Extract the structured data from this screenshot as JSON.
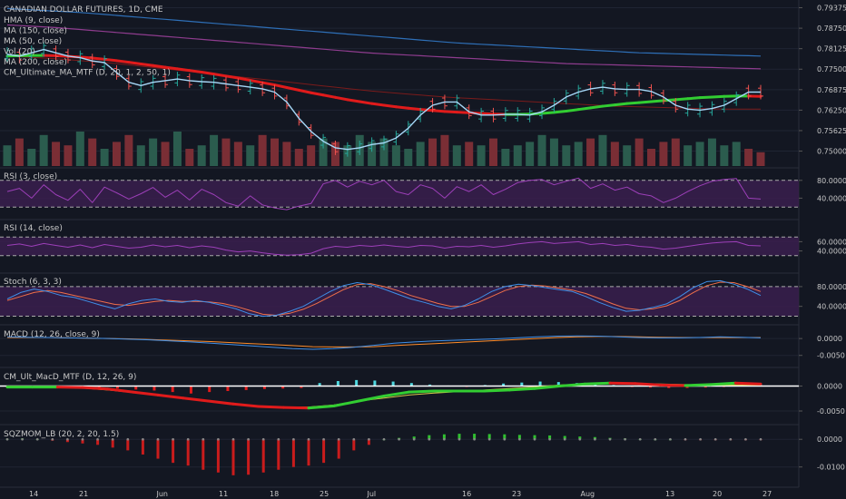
{
  "chart_data": [
    {
      "id": "main",
      "type": "candlestick",
      "title": "CANADIAN DOLLAR FUTURES, 1D, CME",
      "legend": [
        "HMA (9, close)",
        "MA (150, close)",
        "MA (50, close)",
        "Vol (20)",
        "MA (200, close)",
        "CM_Ultimate_MA_MTF (D, 20, 1, 2, 50, 1)"
      ],
      "ylim": [
        0.746,
        0.795
      ],
      "yticks": [
        "0.79375",
        "0.78750",
        "0.78125",
        "0.77500",
        "0.76875",
        "0.76250",
        "0.75625",
        "0.75000"
      ],
      "ytick_values": [
        0.79375,
        0.7875,
        0.78125,
        0.775,
        0.76875,
        0.7625,
        0.75625,
        0.75
      ],
      "xticks": [
        "14",
        "21",
        "Jun",
        "11",
        "18",
        "25",
        "Jul",
        "16",
        "23",
        "Aug",
        "13",
        "20",
        "27"
      ],
      "hma": [
        0.7795,
        0.779,
        0.78,
        0.781,
        0.78,
        0.779,
        0.7785,
        0.7775,
        0.777,
        0.774,
        0.771,
        0.77,
        0.771,
        0.7715,
        0.772,
        0.7715,
        0.7712,
        0.771,
        0.7705,
        0.77,
        0.7695,
        0.769,
        0.768,
        0.765,
        0.76,
        0.756,
        0.753,
        0.751,
        0.7505,
        0.751,
        0.752,
        0.7525,
        0.754,
        0.757,
        0.761,
        0.764,
        0.765,
        0.765,
        0.762,
        0.761,
        0.761,
        0.7612,
        0.7612,
        0.761,
        0.762,
        0.764,
        0.7665,
        0.768,
        0.769,
        0.7695,
        0.769,
        0.7688,
        0.7688,
        0.7682,
        0.7665,
        0.764,
        0.7628,
        0.7625,
        0.763,
        0.764,
        0.766,
        0.768,
        0.768
      ],
      "ma50": [
        0.779,
        0.7791,
        0.7792,
        0.7792,
        0.7791,
        0.7789,
        0.7787,
        0.7784,
        0.778,
        0.7776,
        0.7771,
        0.7766,
        0.7761,
        0.7756,
        0.7751,
        0.7746,
        0.7741,
        0.7735,
        0.7729,
        0.7723,
        0.7716,
        0.7709,
        0.7702,
        0.7694,
        0.7686,
        0.7678,
        0.7671,
        0.7664,
        0.7657,
        0.7651,
        0.7645,
        0.764,
        0.7635,
        0.7631,
        0.7627,
        0.7624,
        0.7621,
        0.7619,
        0.7617,
        0.7615,
        0.7613,
        0.7612,
        0.7612,
        0.7613,
        0.7615,
        0.7618,
        0.7622,
        0.7627,
        0.7632,
        0.7637,
        0.7641,
        0.7645,
        0.7648,
        0.7651,
        0.7654,
        0.7657,
        0.766,
        0.7663,
        0.7665,
        0.7667,
        0.7668,
        0.7668,
        0.7667
      ],
      "ma150": [
        0.7935,
        0.7933,
        0.7931,
        0.7929,
        0.7927,
        0.7925,
        0.7923,
        0.792,
        0.7917,
        0.7914,
        0.7911,
        0.7908,
        0.7905,
        0.7902,
        0.7899,
        0.7896,
        0.7893,
        0.789,
        0.7887,
        0.7884,
        0.7881,
        0.7878,
        0.7875,
        0.7872,
        0.7869,
        0.7866,
        0.7863,
        0.786,
        0.7857,
        0.7854,
        0.7851,
        0.7848,
        0.7845,
        0.7842,
        0.7839,
        0.7836,
        0.7833,
        0.783,
        0.7828,
        0.7826,
        0.7824,
        0.7822,
        0.782,
        0.7818,
        0.7816,
        0.7814,
        0.7812,
        0.781,
        0.7808,
        0.7806,
        0.7804,
        0.7802,
        0.78,
        0.7799,
        0.7798,
        0.7797,
        0.7796,
        0.7795,
        0.7794,
        0.7793,
        0.7792,
        0.7791,
        0.779
      ],
      "ma200": [
        0.7885,
        0.7883,
        0.7881,
        0.7879,
        0.7877,
        0.7874,
        0.7871,
        0.7868,
        0.7865,
        0.7862,
        0.7859,
        0.7856,
        0.7853,
        0.785,
        0.7847,
        0.7844,
        0.7841,
        0.7838,
        0.7835,
        0.7832,
        0.7829,
        0.7826,
        0.7823,
        0.782,
        0.7817,
        0.7814,
        0.7811,
        0.7808,
        0.7805,
        0.7802,
        0.7799,
        0.7797,
        0.7795,
        0.7793,
        0.7791,
        0.7789,
        0.7787,
        0.7785,
        0.7783,
        0.7781,
        0.7779,
        0.7777,
        0.7775,
        0.7773,
        0.7771,
        0.7769,
        0.7767,
        0.7766,
        0.7765,
        0.7764,
        0.7763,
        0.7762,
        0.7761,
        0.776,
        0.7759,
        0.7758,
        0.7757,
        0.7756,
        0.7755,
        0.7754,
        0.7753,
        0.7752,
        0.7751
      ],
      "ma200b": [
        0.779,
        0.7788,
        0.7786,
        0.7784,
        0.7782,
        0.7779,
        0.7776,
        0.7773,
        0.777,
        0.7767,
        0.7763,
        0.7759,
        0.7755,
        0.7751,
        0.7747,
        0.7743,
        0.7739,
        0.7735,
        0.7731,
        0.7727,
        0.7723,
        0.7719,
        0.7715,
        0.7711,
        0.7707,
        0.7703,
        0.7699,
        0.7695,
        0.7691,
        0.7687,
        0.7683,
        0.768,
        0.7677,
        0.7674,
        0.7671,
        0.7668,
        0.7665,
        0.7663,
        0.7661,
        0.7659,
        0.7657,
        0.7655,
        0.7653,
        0.7651,
        0.7649,
        0.7647,
        0.7645,
        0.7643,
        0.7641,
        0.7639,
        0.7637,
        0.7636,
        0.7635,
        0.7634,
        0.7633,
        0.7632,
        0.7631,
        0.763,
        0.7629,
        0.7628,
        0.7628,
        0.7628,
        0.7628
      ],
      "candle_dir": [
        1,
        0,
        1,
        1,
        0,
        0,
        1,
        0,
        1,
        0,
        0,
        1,
        1,
        0,
        1,
        0,
        1,
        1,
        0,
        0,
        1,
        0,
        0,
        0,
        0,
        0,
        1,
        0,
        1,
        1,
        1,
        1,
        1,
        1,
        1,
        0,
        0,
        1,
        0,
        1,
        0,
        1,
        1,
        1,
        1,
        1,
        1,
        1,
        0,
        1,
        0,
        1,
        0,
        0,
        0,
        0,
        1,
        1,
        1,
        1,
        1,
        0,
        0
      ],
      "volume": [
        0.6,
        0.8,
        0.5,
        0.9,
        0.7,
        0.6,
        1.0,
        0.8,
        0.5,
        0.7,
        0.9,
        0.6,
        0.8,
        0.7,
        1.0,
        0.5,
        0.6,
        0.9,
        0.8,
        0.7,
        0.6,
        0.9,
        0.8,
        0.7,
        0.5,
        0.6,
        0.8,
        0.7,
        0.6,
        0.9,
        0.7,
        0.8,
        0.6,
        0.5,
        0.7,
        0.8,
        0.9,
        0.6,
        0.7,
        0.6,
        0.8,
        0.5,
        0.6,
        0.7,
        0.9,
        0.8,
        0.6,
        0.7,
        0.8,
        0.9,
        0.7,
        0.6,
        0.8,
        0.5,
        0.7,
        0.8,
        0.6,
        0.7,
        0.8,
        0.6,
        0.7,
        0.5,
        0.4
      ]
    },
    {
      "id": "rsi3",
      "type": "line",
      "label": "RSI (3, close)",
      "ylim": [
        0,
        100
      ],
      "yticks": [
        "80.0000",
        "40.0000"
      ],
      "ytick_values": [
        80,
        40
      ],
      "bands": [
        80,
        20
      ],
      "values": [
        55,
        62,
        40,
        70,
        48,
        35,
        60,
        30,
        65,
        52,
        38,
        50,
        64,
        42,
        58,
        36,
        60,
        48,
        30,
        22,
        45,
        25,
        18,
        14,
        22,
        28,
        72,
        80,
        65,
        78,
        70,
        80,
        55,
        48,
        70,
        62,
        40,
        66,
        55,
        70,
        48,
        60,
        75,
        80,
        82,
        70,
        78,
        85,
        62,
        72,
        58,
        65,
        50,
        45,
        30,
        40,
        55,
        68,
        78,
        82,
        84,
        40,
        38
      ]
    },
    {
      "id": "rsi14",
      "type": "line",
      "label": "RSI (14, close)",
      "ylim": [
        0,
        100
      ],
      "yticks": [
        "60.0000",
        "40.0000"
      ],
      "ytick_values": [
        60,
        40
      ],
      "bands": [
        70,
        30
      ],
      "values": [
        52,
        55,
        50,
        56,
        52,
        48,
        53,
        47,
        54,
        50,
        46,
        48,
        53,
        49,
        52,
        47,
        51,
        48,
        42,
        38,
        40,
        36,
        33,
        31,
        32,
        35,
        45,
        50,
        48,
        52,
        50,
        53,
        50,
        48,
        52,
        51,
        46,
        50,
        49,
        52,
        48,
        51,
        55,
        58,
        60,
        56,
        58,
        60,
        54,
        56,
        52,
        54,
        50,
        48,
        44,
        46,
        50,
        54,
        57,
        59,
        60,
        52,
        51
      ]
    },
    {
      "id": "stoch",
      "type": "line",
      "label": "Stoch (6, 3, 3)",
      "ylim": [
        10,
        100
      ],
      "yticks": [
        "80.0000",
        "40.0000"
      ],
      "ytick_values": [
        80,
        40
      ],
      "bands": [
        80,
        20
      ],
      "k": [
        55,
        68,
        75,
        70,
        62,
        58,
        50,
        42,
        35,
        45,
        52,
        55,
        50,
        48,
        52,
        48,
        42,
        35,
        25,
        20,
        22,
        30,
        40,
        55,
        70,
        82,
        88,
        84,
        75,
        65,
        55,
        48,
        40,
        35,
        42,
        55,
        70,
        80,
        85,
        82,
        78,
        74,
        70,
        60,
        48,
        38,
        30,
        32,
        38,
        45,
        60,
        78,
        90,
        92,
        85,
        75,
        62
      ],
      "d": [
        52,
        60,
        68,
        72,
        68,
        62,
        56,
        50,
        44,
        42,
        46,
        50,
        52,
        50,
        50,
        49,
        46,
        40,
        32,
        24,
        22,
        26,
        34,
        46,
        60,
        74,
        84,
        86,
        80,
        72,
        62,
        54,
        46,
        40,
        40,
        48,
        60,
        72,
        80,
        83,
        81,
        77,
        73,
        66,
        56,
        45,
        36,
        33,
        35,
        41,
        52,
        68,
        82,
        89,
        88,
        80,
        70
      ]
    },
    {
      "id": "macd",
      "type": "line",
      "label": "MACD (12, 26, close, 9)",
      "ylim": [
        -0.0075,
        0.003
      ],
      "yticks": [
        "0.0000",
        "-0.0050"
      ],
      "ytick_values": [
        0,
        -0.005
      ],
      "macd": [
        0.0005,
        0.0004,
        0.0003,
        0.0002,
        0.0001,
        0.0,
        -0.0002,
        -0.0004,
        -0.0007,
        -0.001,
        -0.0014,
        -0.0018,
        -0.0022,
        -0.0026,
        -0.003,
        -0.0032,
        -0.003,
        -0.0026,
        -0.002,
        -0.0014,
        -0.001,
        -0.0007,
        -0.0005,
        -0.0003,
        -0.0001,
        0.0002,
        0.0005,
        0.0007,
        0.0008,
        0.0007,
        0.0005,
        0.0003,
        0.0002,
        0.0002,
        0.0003,
        0.0005,
        0.0004,
        0.0002
      ],
      "signal": [
        0.0003,
        0.0003,
        0.0003,
        0.0002,
        0.0001,
        0.0,
        -0.0001,
        -0.0003,
        -0.0005,
        -0.0007,
        -0.0009,
        -0.0012,
        -0.0015,
        -0.0018,
        -0.0021,
        -0.0024,
        -0.0025,
        -0.0025,
        -0.0024,
        -0.0021,
        -0.0018,
        -0.0015,
        -0.0012,
        -0.0009,
        -0.0006,
        -0.0003,
        0.0,
        0.0003,
        0.0005,
        0.0006,
        0.0006,
        0.0005,
        0.0004,
        0.0003,
        0.0003,
        0.0003,
        0.0003,
        0.0003
      ]
    },
    {
      "id": "ultmacd",
      "type": "histogram",
      "label": "CM_Ult_MacD_MTF (D, 12, 26, 9)",
      "ylim": [
        -0.007,
        0.003
      ],
      "yticks": [
        "0.0000",
        "-0.0050"
      ],
      "ytick_values": [
        0,
        -0.005
      ],
      "hist": [
        -0.0003,
        -0.0002,
        -0.0001,
        0.0,
        -0.0002,
        -0.0004,
        -0.0005,
        -0.0007,
        -0.0009,
        -0.0012,
        -0.0015,
        -0.0012,
        -0.001,
        -0.0008,
        -0.0006,
        -0.0005,
        -0.0004,
        0.0006,
        0.001,
        0.0012,
        0.0011,
        0.0009,
        0.0006,
        0.0003,
        0.0001,
        -0.0001,
        0.0002,
        0.0005,
        0.0007,
        0.0009,
        0.0008,
        0.0006,
        0.0004,
        0.0002,
        -0.0002,
        -0.0003,
        -0.0004,
        -0.0004,
        -0.0003,
        -0.0002,
        0.0001,
        0.0002
      ],
      "macd": [
        -0.0002,
        -0.0002,
        -0.0002,
        -0.0003,
        -0.0006,
        -0.0012,
        -0.0018,
        -0.0024,
        -0.003,
        -0.0036,
        -0.0041,
        -0.0043,
        -0.0044,
        -0.004,
        -0.003,
        -0.002,
        -0.0012,
        -0.001,
        -0.001,
        -0.001,
        -0.0008,
        -0.0005,
        0.0,
        0.0004,
        0.0006,
        0.0005,
        0.0002,
        0.0001,
        0.0003,
        0.0006,
        0.0004
      ],
      "signal": [
        0.0,
        -0.0001,
        -0.0002,
        -0.0004,
        -0.0008,
        -0.0013,
        -0.0019,
        -0.0025,
        -0.0031,
        -0.0036,
        -0.004,
        -0.0042,
        -0.0042,
        -0.0038,
        -0.003,
        -0.0024,
        -0.0018,
        -0.0014,
        -0.0011,
        -0.0008,
        -0.0005,
        -0.0002,
        0.0002,
        0.0004,
        0.0005,
        0.0005,
        0.0004,
        0.0003,
        0.0002,
        0.0002,
        0.0002
      ]
    },
    {
      "id": "sqzmom",
      "type": "histogram",
      "label": "SQZMOM_LB (20, 2, 20, 1.5)",
      "ylim": [
        -0.016,
        0.004
      ],
      "yticks": [
        "0.0000",
        "-0.0100"
      ],
      "ytick_values": [
        0,
        -0.01
      ],
      "values": [
        0.0002,
        0.0003,
        0.0001,
        -0.0005,
        -0.001,
        -0.0015,
        -0.002,
        -0.003,
        -0.004,
        -0.0055,
        -0.007,
        -0.0085,
        -0.0095,
        -0.011,
        -0.012,
        -0.013,
        -0.0128,
        -0.012,
        -0.011,
        -0.01,
        -0.0095,
        -0.0085,
        -0.007,
        -0.004,
        -0.002,
        0.0,
        0.0005,
        0.001,
        0.0015,
        0.0018,
        0.002,
        0.002,
        0.0019,
        0.0018,
        0.0016,
        0.0015,
        0.0014,
        0.0012,
        0.001,
        0.0008,
        0.0005,
        0.0003,
        0.0001,
        0.0,
        0.0,
        -0.0001,
        -0.0002,
        -0.0003,
        -0.0002,
        -0.0001,
        -0.0003
      ]
    }
  ],
  "colors": {
    "background": "#131722",
    "grid": "#1f2433",
    "up": "#26a69a",
    "down": "#ef5350",
    "hma": "#a6d7f7",
    "ma50_green": "#32cd32",
    "ma50_red": "#e01b1b",
    "ma150": "#2e6fb7",
    "ma200": "#8e3c8e",
    "ma200b": "#7a1b1b",
    "vol_up": "#2b5c4e",
    "vol_down": "#7a2e35",
    "rsi_band": "#3a1f4e",
    "rsi_line": "#9c3fb8",
    "stoch_k": "#3f8fe8",
    "stoch_d": "#ef6f4a",
    "macd_line": "#3f8fe8",
    "signal_line": "#ff8c2a",
    "ult_signal": "#d6c84a",
    "zero_line": "#ffffff",
    "hist_up_strong": "#4fd8e0",
    "hist_down_strong": "#e01b1b",
    "sqz_up": "#2fbf2f",
    "sqz_down": "#c91c1c"
  }
}
